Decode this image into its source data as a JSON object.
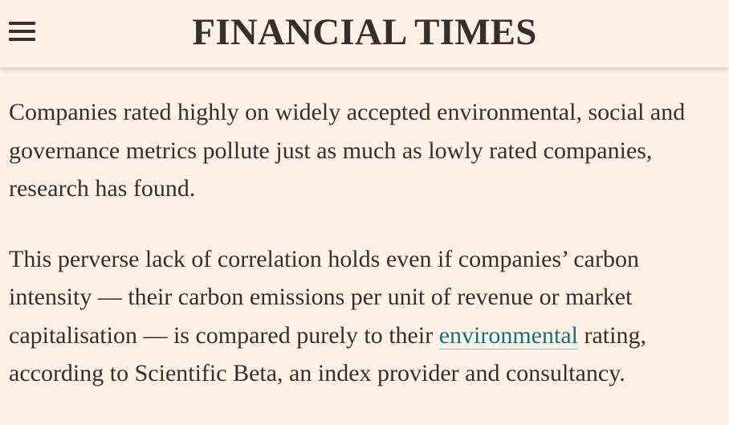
{
  "header": {
    "masthead": "FINANCIAL TIMES",
    "menu_icon": "hamburger-menu-icon"
  },
  "article": {
    "paragraph1": "Companies rated highly on widely accepted environmental, social and governance metrics pollute just as much as lowly rated companies, research has found.",
    "paragraph2": {
      "before_link": "This perverse lack of correlation holds even if companies’ carbon intensity — their carbon emissions per unit of revenue or market capitalisation — is compared purely to their ",
      "link_text": "environmental",
      "after_link": " rating, according to Scientific Beta, an index provider and consultancy."
    }
  },
  "colors": {
    "background": "#fff1e5",
    "text": "#33302e",
    "link": "#0d7680"
  }
}
